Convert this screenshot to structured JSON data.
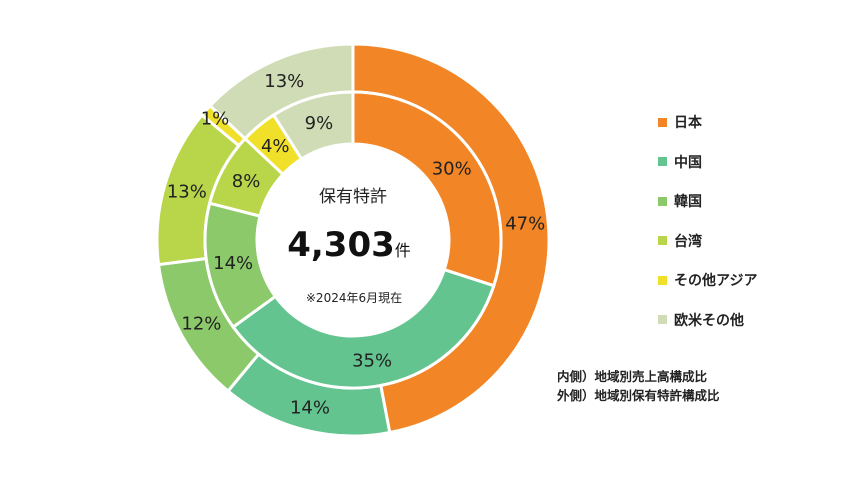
{
  "chart_data": {
    "type": "pie",
    "style": "nested-donut",
    "categories": [
      "日本",
      "中国",
      "韓国",
      "台湾",
      "その他アジア",
      "欧米その他"
    ],
    "colors": [
      "#f28525",
      "#64c48f",
      "#8cc96b",
      "#b9d54a",
      "#f0e02a",
      "#d0dcb5"
    ],
    "series": [
      {
        "name": "地域別売上高構成比",
        "ring": "inner",
        "values": [
          30,
          35,
          14,
          8,
          4,
          9
        ],
        "labels": [
          "30%",
          "35%",
          "14%",
          "8%",
          "4%",
          "9%"
        ]
      },
      {
        "name": "地域別保有特許構成比",
        "ring": "outer",
        "values": [
          47,
          14,
          12,
          13,
          1,
          13
        ],
        "labels": [
          "47%",
          "14%",
          "12%",
          "13%",
          "1%",
          "13%"
        ]
      }
    ],
    "center": {
      "title": "保有特許",
      "value": "4,303",
      "unit": "件",
      "note": "※2024年6月現在"
    },
    "legend_position": "right",
    "notes": [
      "内側）地域別売上高構成比",
      "外側）地域別保有特許構成比"
    ]
  }
}
